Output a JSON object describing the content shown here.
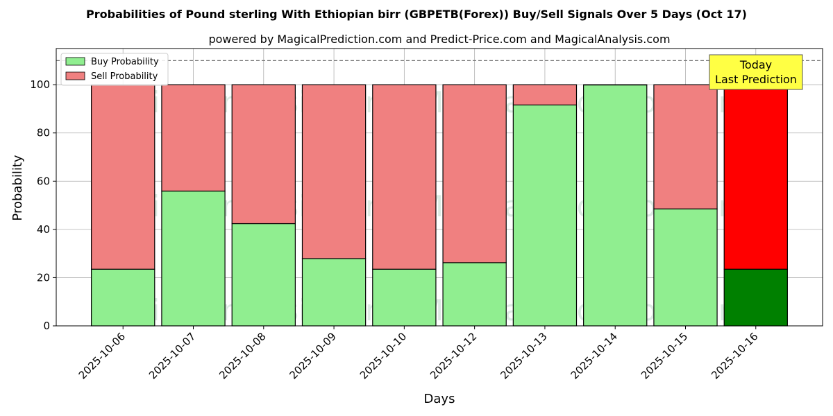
{
  "title": "Probabilities of Pound sterling With Ethiopian birr (GBPETB(Forex)) Buy/Sell Signals Over 5 Days (Oct 17)",
  "subtitle": "powered by MagicalPrediction.com and Predict-Price.com and MagicalAnalysis.com",
  "watermarks": [
    "MagicalAnalysis.com",
    "MagicalPrediction.com"
  ],
  "annotation": {
    "line1": "Today",
    "line2": "Last Prediction"
  },
  "colors": {
    "buy": "#90ee90",
    "sell": "#f08080",
    "buy_highlight": "#008000",
    "sell_highlight": "#ff0000",
    "annotation_bg": "#ffff44"
  },
  "chart_data": {
    "type": "bar",
    "stacked": true,
    "categories": [
      "2025-10-06",
      "2025-10-07",
      "2025-10-08",
      "2025-10-09",
      "2025-10-10",
      "2025-10-12",
      "2025-10-13",
      "2025-10-14",
      "2025-10-15",
      "2025-10-16"
    ],
    "series": [
      {
        "name": "Buy Probability",
        "values": [
          23.5,
          55.9,
          42.4,
          27.9,
          23.5,
          26.2,
          91.6,
          99.9,
          48.5,
          23.5
        ]
      },
      {
        "name": "Sell Probability",
        "values": [
          76.5,
          44.1,
          57.6,
          72.1,
          76.5,
          73.8,
          8.4,
          0.1,
          51.5,
          76.5
        ]
      }
    ],
    "highlight_index": 9,
    "xlabel": "Days",
    "ylabel": "Probability",
    "ylim": [
      0,
      115
    ],
    "yticks": [
      0,
      20,
      40,
      60,
      80,
      100
    ],
    "reference_line": 110,
    "grid": true,
    "legend_position": "upper left"
  }
}
